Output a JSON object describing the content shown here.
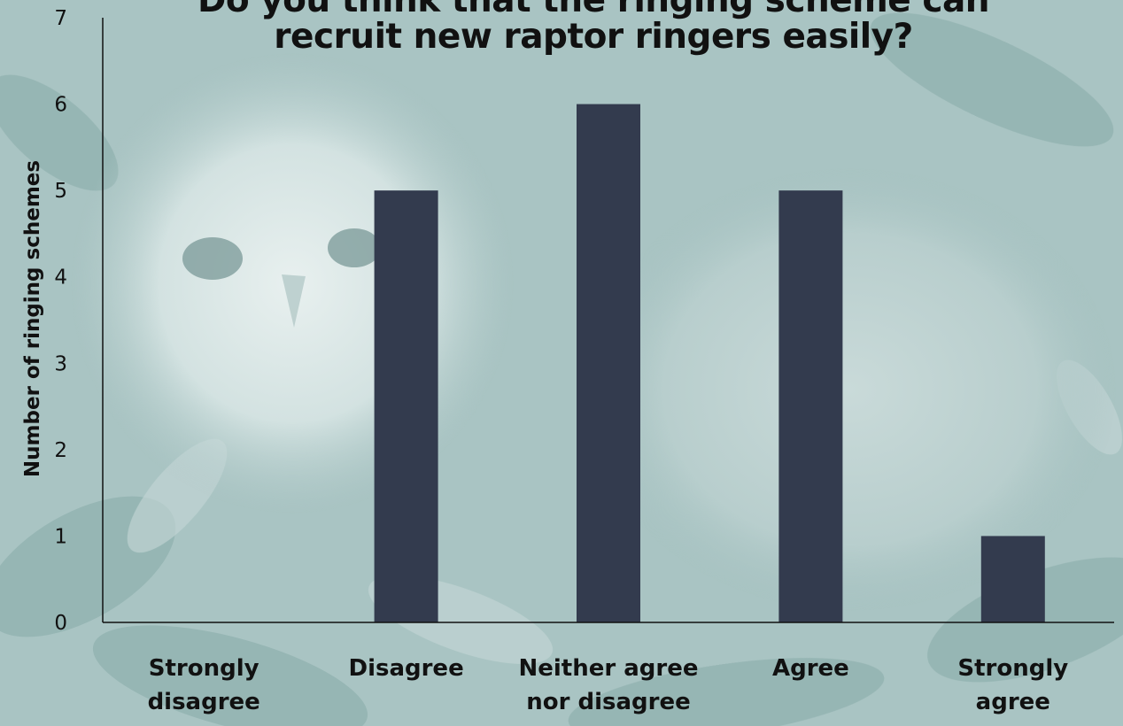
{
  "chart_data": {
    "type": "bar",
    "title_lines": [
      "Do you think that the ringing scheme can",
      "recruit new raptor ringers easily?"
    ],
    "xlabel": "",
    "ylabel": "Number of ringing schemes",
    "categories": [
      [
        "Strongly",
        "disagree"
      ],
      [
        "Disagree"
      ],
      [
        "Neither agree",
        "nor disagree"
      ],
      [
        "Agree"
      ],
      [
        "Strongly",
        "agree"
      ]
    ],
    "values": [
      0,
      5,
      6,
      5,
      1
    ],
    "ylim": [
      0,
      7
    ],
    "yticks": [
      "0",
      "1",
      "2",
      "3",
      "4",
      "5",
      "6",
      "7"
    ],
    "grid": false,
    "bar_color": "#333b4e",
    "background_tint": "#a9c4c3"
  }
}
